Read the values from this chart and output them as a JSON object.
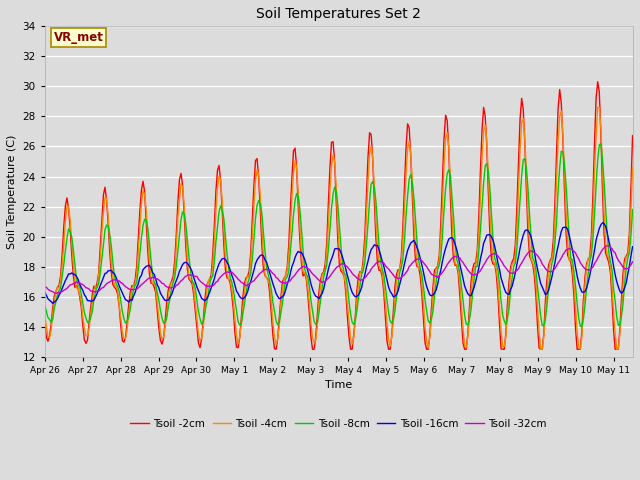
{
  "title": "Soil Temperatures Set 2",
  "xlabel": "Time",
  "ylabel": "Soil Temperature (C)",
  "ylim": [
    12,
    34
  ],
  "yticks": [
    12,
    14,
    16,
    18,
    20,
    22,
    24,
    26,
    28,
    30,
    32,
    34
  ],
  "annotation_text": "VR_met",
  "annotation_box_color": "#FFFFCC",
  "annotation_text_color": "#880000",
  "colors": {
    "Tsoil -2cm": "#FF0000",
    "Tsoil -4cm": "#FF8800",
    "Tsoil -8cm": "#00CC00",
    "Tsoil -16cm": "#0000EE",
    "Tsoil -32cm": "#CC00CC"
  },
  "line_width": 1.0,
  "background_color": "#DCDCDC",
  "grid_color": "#FFFFFF",
  "x_tick_labels": [
    "Apr 26",
    "Apr 27",
    "Apr 28",
    "Apr 29",
    "Apr 30",
    "May 1",
    "May 2",
    "May 3",
    "May 4",
    "May 5",
    "May 6",
    "May 7",
    "May 8",
    "May 9",
    "May 10",
    "May 11"
  ],
  "x_tick_positions": [
    0,
    1,
    2,
    3,
    4,
    5,
    6,
    7,
    8,
    9,
    10,
    11,
    12,
    13,
    14,
    15
  ]
}
